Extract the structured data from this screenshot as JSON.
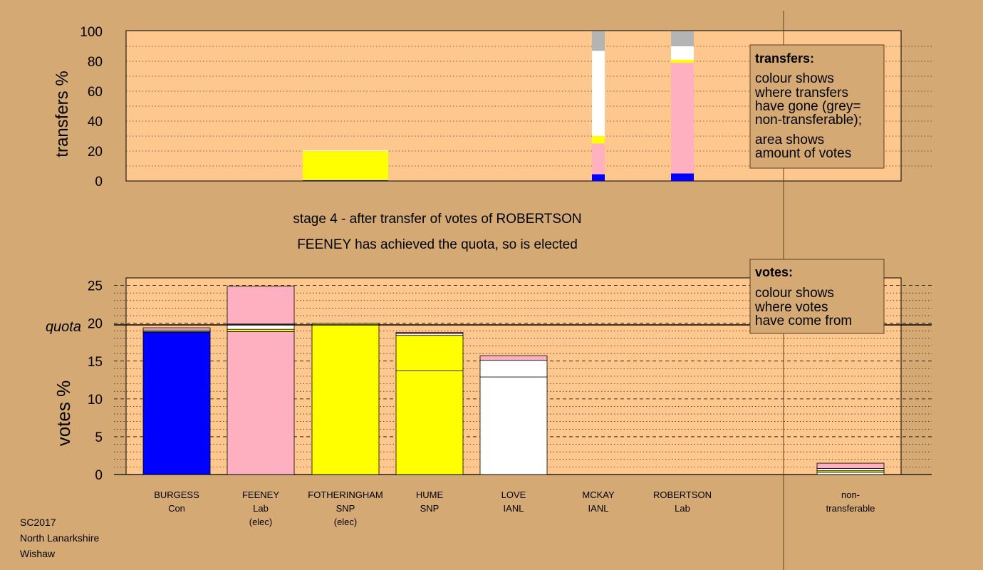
{
  "corner": {
    "line1": "SC2017",
    "line2": "North Lanarkshire",
    "line3": "Wishaw"
  },
  "stage": {
    "line1": "stage 4 - after transfer of votes of ROBERTSON",
    "line2": "FEENEY has achieved the quota, so is elected"
  },
  "transfers_legend": {
    "title": "transfers:",
    "lines": [
      "colour shows",
      "where transfers",
      "have gone (grey=",
      "non-transferable);"
    ],
    "lines2": [
      "area shows",
      "amount of votes"
    ]
  },
  "votes_legend": {
    "title": "votes:",
    "lines": [
      "colour shows",
      "where votes",
      "have come from"
    ]
  },
  "colors": {
    "background": "#d4a974",
    "panel": "#fdc78d",
    "Con": "#0000ff",
    "Lab": "#ffb0c0",
    "SNP": "#ffff00",
    "IANL": "#ffffff",
    "nontransferable": "#b4b4b4"
  },
  "chart_data": [
    {
      "type": "bar",
      "name": "transfers",
      "ylabel": "transfers %",
      "ylim": [
        0,
        100
      ],
      "yticks": [
        0,
        20,
        40,
        60,
        80,
        100
      ],
      "categories": [
        "BURGESS",
        "FEENEY",
        "FOTHERINGHAM",
        "HUME",
        "LOVE",
        "MCKAY",
        "ROBERTSON",
        "non-transferable"
      ],
      "bars": [
        {
          "category": "FOTHERINGHAM",
          "segments": [
            {
              "party": "Con",
              "value": 0.5
            },
            {
              "party": "SNP",
              "value": 19.5
            },
            {
              "party": "IANL",
              "value": 0.5
            }
          ]
        },
        {
          "category": "MCKAY",
          "segments": [
            {
              "party": "Con",
              "value": 4.5
            },
            {
              "party": "Lab",
              "value": 20.5
            },
            {
              "party": "SNP",
              "value": 5
            },
            {
              "party": "IANL",
              "value": 57
            },
            {
              "party": "nontransferable",
              "value": 13
            }
          ]
        },
        {
          "category": "ROBERTSON",
          "segments": [
            {
              "party": "Con",
              "value": 5
            },
            {
              "party": "Lab",
              "value": 74
            },
            {
              "party": "SNP",
              "value": 2
            },
            {
              "party": "IANL",
              "value": 9
            },
            {
              "party": "nontransferable",
              "value": 10
            }
          ]
        }
      ]
    },
    {
      "type": "bar",
      "name": "votes",
      "ylabel": "votes %",
      "ylim": [
        0,
        26
      ],
      "yticks": [
        0,
        5,
        10,
        15,
        20,
        25
      ],
      "quota": 20,
      "quota_label": "quota",
      "candidates": [
        {
          "name": "BURGESS",
          "party": "Con",
          "note": "",
          "segments": [
            {
              "party": "Con",
              "value": 18.8
            },
            {
              "party": "SNP",
              "value": 0.1
            },
            {
              "party": "IANL",
              "value": 0.2
            },
            {
              "party": "Lab",
              "value": 0.3
            }
          ]
        },
        {
          "name": "FEENEY",
          "party": "Lab",
          "note": "(elec)",
          "segments": [
            {
              "party": "Lab",
              "value": 18.9
            },
            {
              "party": "SNP",
              "value": 0.3
            },
            {
              "party": "IANL",
              "value": 0.7
            },
            {
              "party": "Lab",
              "value": 5.0
            }
          ]
        },
        {
          "name": "FOTHERINGHAM",
          "party": "SNP",
          "note": "(elec)",
          "segments": [
            {
              "party": "SNP",
              "value": 20.0
            }
          ]
        },
        {
          "name": "HUME",
          "party": "SNP",
          "note": "",
          "segments": [
            {
              "party": "SNP",
              "value": 13.7
            },
            {
              "party": "SNP",
              "value": 4.7
            },
            {
              "party": "IANL",
              "value": 0.2
            },
            {
              "party": "Lab",
              "value": 0.2
            }
          ]
        },
        {
          "name": "LOVE",
          "party": "IANL",
          "note": "",
          "segments": [
            {
              "party": "IANL",
              "value": 12.9
            },
            {
              "party": "IANL",
              "value": 2.2
            },
            {
              "party": "Lab",
              "value": 0.6
            }
          ]
        },
        {
          "name": "MCKAY",
          "party": "IANL",
          "note": "",
          "segments": []
        },
        {
          "name": "ROBERTSON",
          "party": "Lab",
          "note": "",
          "segments": []
        }
      ],
      "nontransferable": {
        "label": "non-\ntransferable",
        "segments": [
          {
            "party": "IANL",
            "value": 0.3
          },
          {
            "party": "SNP",
            "value": 0.2
          },
          {
            "party": "IANL",
            "value": 0.3
          },
          {
            "party": "Lab",
            "value": 0.7
          }
        ]
      }
    }
  ]
}
